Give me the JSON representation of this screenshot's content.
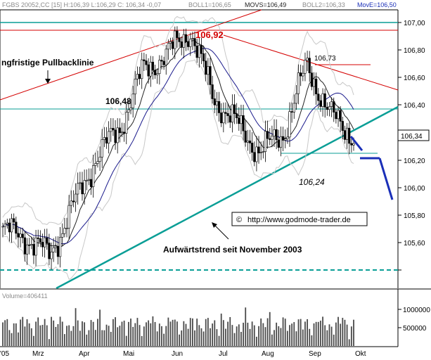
{
  "header": {
    "title": "FGBS 20052,CC [15] H:106,39 L:106,29 C: 106,34 -0,07",
    "boll1": "BOLL1=106,65",
    "movs": "MOVS=106,49",
    "boll2": "BOLL2=106,33",
    "move": "MovE=106,50",
    "colors": {
      "muted": "#8a8a8a",
      "dark": "#222222",
      "blue": "#1a2fb8"
    }
  },
  "price_axis": {
    "ticks": [
      "107,00",
      "106,80",
      "106,60",
      "106,40",
      "106,20",
      "106,00",
      "105,80",
      "105,60"
    ],
    "last_price": "106,34"
  },
  "volume_panel": {
    "label": "Volume=406411",
    "ticks": [
      "1000000",
      "500000"
    ],
    "axis_max": 1300000
  },
  "time_axis": {
    "labels": [
      "'05",
      "Mrz",
      "Apr",
      "Mai",
      "Jun",
      "Jul",
      "Aug",
      "Sep",
      "Okt"
    ]
  },
  "annotations": {
    "pullback_line": "ngfristige Pullbacklinie",
    "level_106_48": "106,48",
    "high_label": "106,92",
    "recent_high": "106,73",
    "support_low": "106,24",
    "uptrend_text": "Aufwärtstrend seit November 2003",
    "source_url": "http://www.godmode-trader.de",
    "copyright_symbol": "©"
  },
  "chart_data": {
    "type": "candlestick",
    "title": "FGBS 20052,CC [15]",
    "ylim": [
      105.5,
      107.03
    ],
    "x_labels": [
      "'05",
      "Mrz",
      "Apr",
      "Mai",
      "Jun",
      "Jul",
      "Aug",
      "Sep",
      "Okt"
    ],
    "last": {
      "high": 106.39,
      "low": 106.29,
      "close": 106.34,
      "change": -0.07
    },
    "indicators": {
      "boll1": 106.65,
      "movs": 106.49,
      "boll2": 106.33,
      "move": 106.5
    },
    "price_series": [
      {
        "month": "'05",
        "close": 105.82
      },
      {
        "month": "Mrz",
        "close": 105.78
      },
      {
        "month": "Mrz",
        "close": 105.68
      },
      {
        "month": "Apr",
        "close": 105.95
      },
      {
        "month": "Apr",
        "close": 106.22
      },
      {
        "month": "Mai",
        "close": 106.38
      },
      {
        "month": "Mai",
        "close": 106.7
      },
      {
        "month": "Jun",
        "close": 106.78
      },
      {
        "month": "Jun",
        "close": 106.92
      },
      {
        "month": "Jul",
        "close": 106.55
      },
      {
        "month": "Jul",
        "close": 106.4
      },
      {
        "month": "Aug",
        "close": 106.25
      },
      {
        "month": "Aug",
        "close": 106.35
      },
      {
        "month": "Sep",
        "close": 106.73
      },
      {
        "month": "Sep",
        "close": 106.45
      },
      {
        "month": "Sep",
        "close": 106.34
      }
    ],
    "horizontal_levels": [
      {
        "label": "106,92",
        "value": 106.92
      },
      {
        "label": "106,48",
        "value": 106.48
      },
      {
        "label": "106,73",
        "value": 106.73
      },
      {
        "label": "106,24",
        "value": 106.24
      },
      {
        "value": 105.6,
        "style": "dashed"
      }
    ],
    "colors": {
      "teal": "#0a9e96",
      "red": "#d40000",
      "blue": "#1a2fb8",
      "navy": "#1a1a8c",
      "band": "#c8c8c8",
      "candle": "#000000",
      "volume": "#4a4a4a"
    }
  }
}
